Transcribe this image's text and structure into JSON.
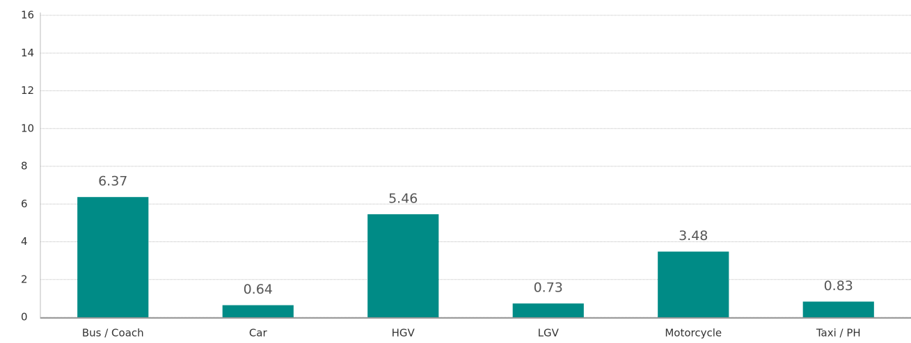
{
  "chart_data": {
    "type": "bar",
    "categories": [
      "Bus / Coach",
      "Car",
      "HGV",
      "LGV",
      "Motorcycle",
      "Taxi / PH"
    ],
    "values": [
      6.37,
      0.64,
      5.46,
      0.73,
      3.48,
      0.83
    ],
    "color": "#008b86",
    "ylim": [
      0,
      16
    ],
    "yticks": [
      0,
      2,
      4,
      6,
      8,
      10,
      12,
      14,
      16
    ],
    "grid": true,
    "data_labels": true
  }
}
